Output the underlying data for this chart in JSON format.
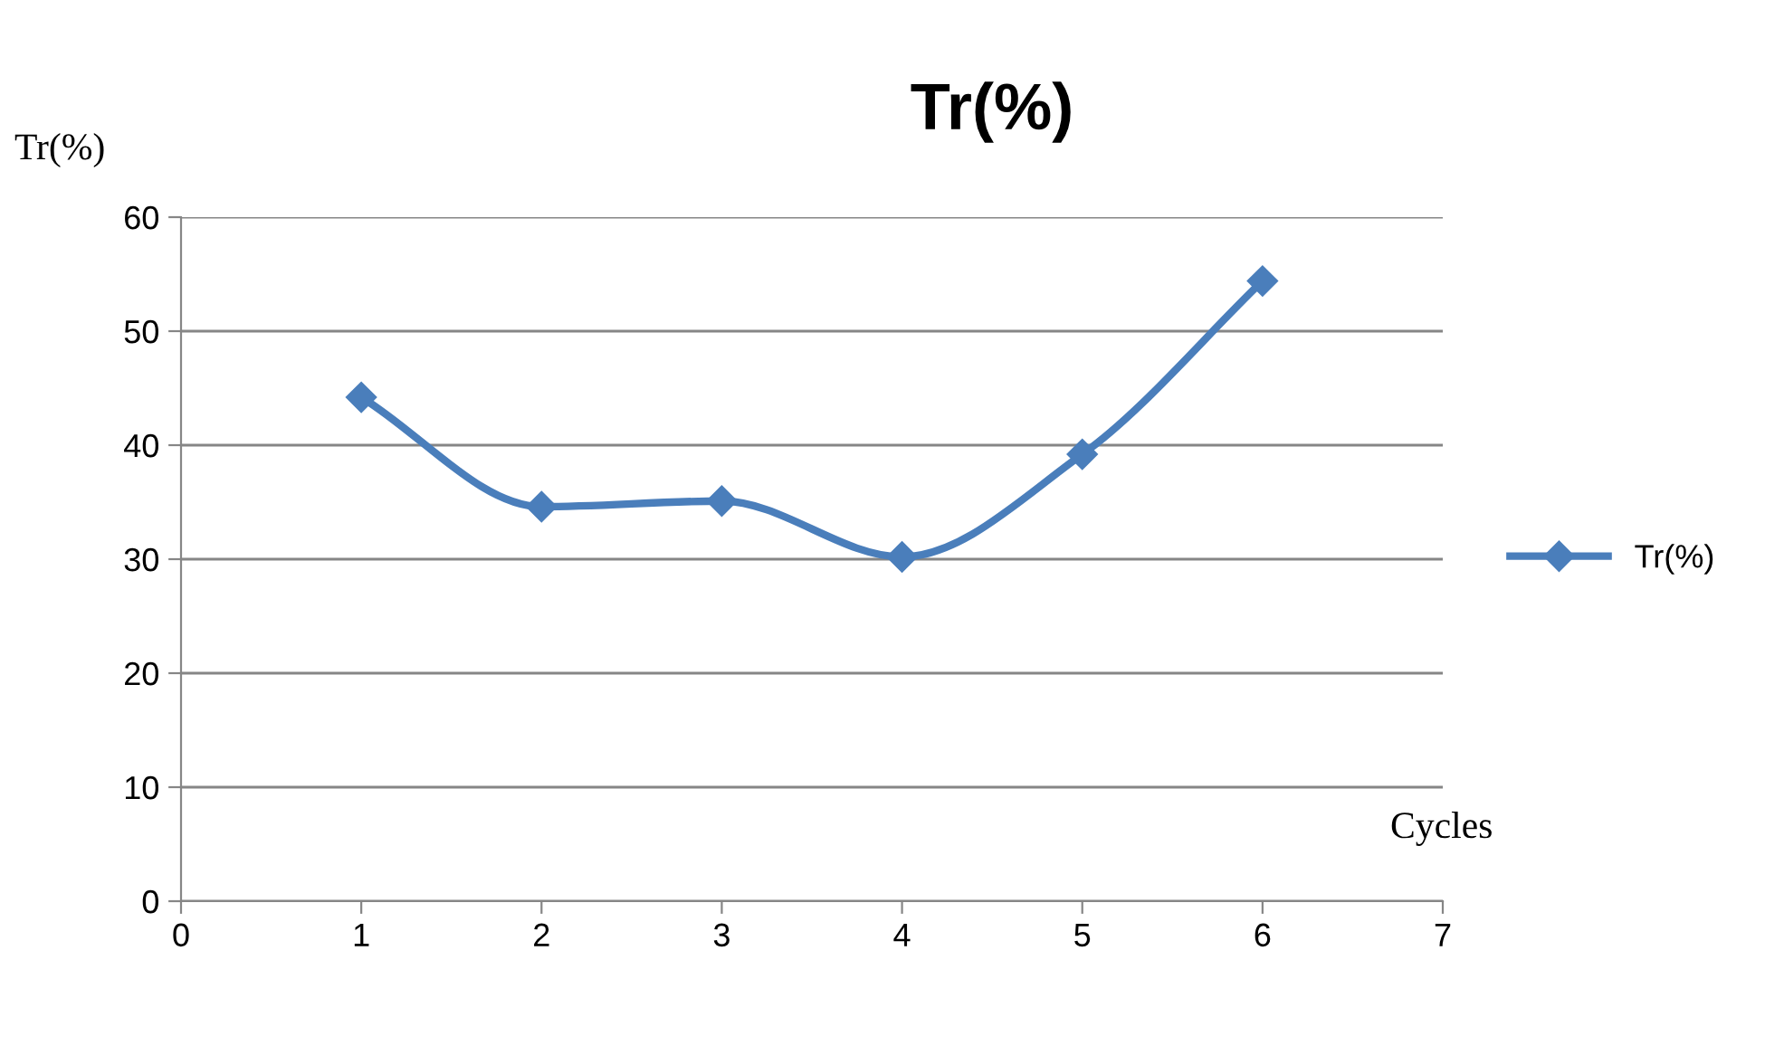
{
  "chart_data": {
    "type": "line",
    "title": "Tr(%)",
    "xlabel": "Cycles",
    "ylabel": "Tr(%)",
    "x": [
      1,
      2,
      3,
      4,
      5,
      6
    ],
    "series": [
      {
        "name": "Tr(%)",
        "color": "#4a7ebb",
        "values": [
          44.2,
          34.6,
          35.1,
          30.2,
          39.2,
          54.4
        ]
      }
    ],
    "xlim": [
      0,
      7
    ],
    "xticks": [
      0,
      1,
      2,
      3,
      4,
      5,
      6,
      7
    ],
    "ylim": [
      0,
      60
    ],
    "yticks": [
      0,
      10,
      20,
      30,
      40,
      50,
      60
    ],
    "grid": "y",
    "legend": "right",
    "marker": "diamond",
    "line_style": "solid"
  }
}
